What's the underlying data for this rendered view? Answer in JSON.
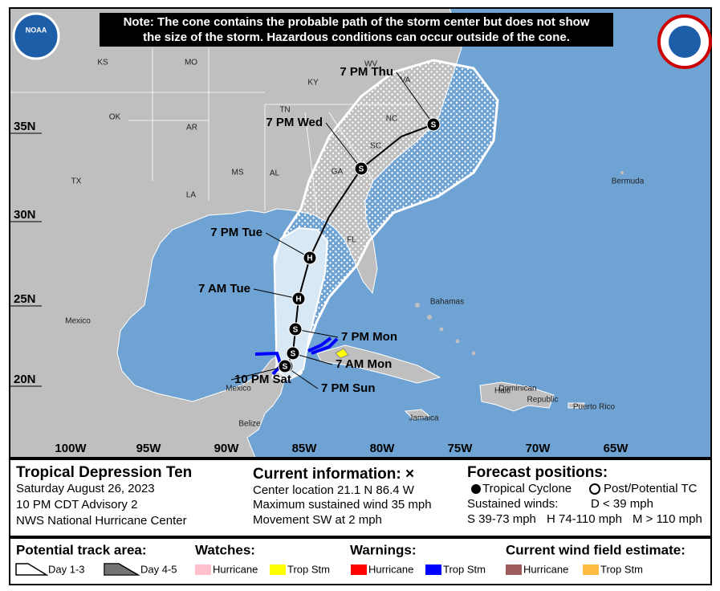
{
  "header": {
    "note_lines": [
      "Note: The cone contains the probable path of the storm center but does not show",
      "the size of the storm. Hazardous conditions can occur outside of the cone."
    ],
    "noaa_logo": "NOAA"
  },
  "map": {
    "places": [
      "KS",
      "MO",
      "WV",
      "VA",
      "KY",
      "TN",
      "NC",
      "OK",
      "AR",
      "SC",
      "MS",
      "AL",
      "GA",
      "TX",
      "LA",
      "FL",
      "Bermuda",
      "Bahamas",
      "Mexico",
      "Mexico",
      "Belize",
      "Jamaica",
      "Haiti",
      "Dominican",
      "Republic",
      "Puerto Rico"
    ],
    "lat_labels": [
      "35N",
      "30N",
      "25N",
      "20N"
    ],
    "lon_labels": [
      "100W",
      "95W",
      "90W",
      "85W",
      "80W",
      "75W",
      "70W",
      "65W"
    ]
  },
  "track": {
    "points": [
      {
        "time": "10 PM Sat",
        "symbol": "S"
      },
      {
        "time": "7 PM Sun",
        "symbol": "S"
      },
      {
        "time": "7 AM Mon",
        "symbol": "S"
      },
      {
        "time": "7 PM Mon",
        "symbol": "S"
      },
      {
        "time": "7 AM Tue",
        "symbol": "H"
      },
      {
        "time": "7 PM Tue",
        "symbol": "H"
      },
      {
        "time": "7 PM Wed",
        "symbol": "S"
      },
      {
        "time": "7 PM Thu",
        "symbol": "S"
      }
    ]
  },
  "storm": {
    "name": "Tropical Depression Ten",
    "date": "Saturday August 26, 2023",
    "advisory": "10 PM CDT Advisory 2",
    "office": "NWS National Hurricane Center"
  },
  "current": {
    "heading": "Current information: ×",
    "lines": [
      "Center location 21.1 N 86.4 W",
      "Maximum sustained wind 35 mph",
      "Movement SW at 2 mph"
    ]
  },
  "forecast": {
    "heading": "Forecast positions:",
    "tropical": "Tropical Cyclone",
    "post": "Post/Potential TC",
    "winds": "Sustained winds:",
    "d": "D < 39 mph",
    "s": "S 39-73 mph",
    "h": "H 74-110 mph",
    "m": "M > 110 mph"
  },
  "legend": {
    "track_area": "Potential track area:",
    "day13": "Day 1-3",
    "day45": "Day 4-5",
    "groups": [
      {
        "title": "Watches:",
        "items": [
          {
            "name": "Hurricane",
            "color": "#ffc0cb"
          },
          {
            "name": "Trop Stm",
            "color": "#ffff00"
          }
        ]
      },
      {
        "title": "Warnings:",
        "items": [
          {
            "name": "Hurricane",
            "color": "#ff0000"
          },
          {
            "name": "Trop Stm",
            "color": "#0000ff"
          }
        ]
      },
      {
        "title": "Current wind field estimate:",
        "items": [
          {
            "name": "Hurricane",
            "color": "#9c5a5a"
          },
          {
            "name": "Trop Stm",
            "color": "#ffbb44"
          }
        ]
      }
    ]
  }
}
